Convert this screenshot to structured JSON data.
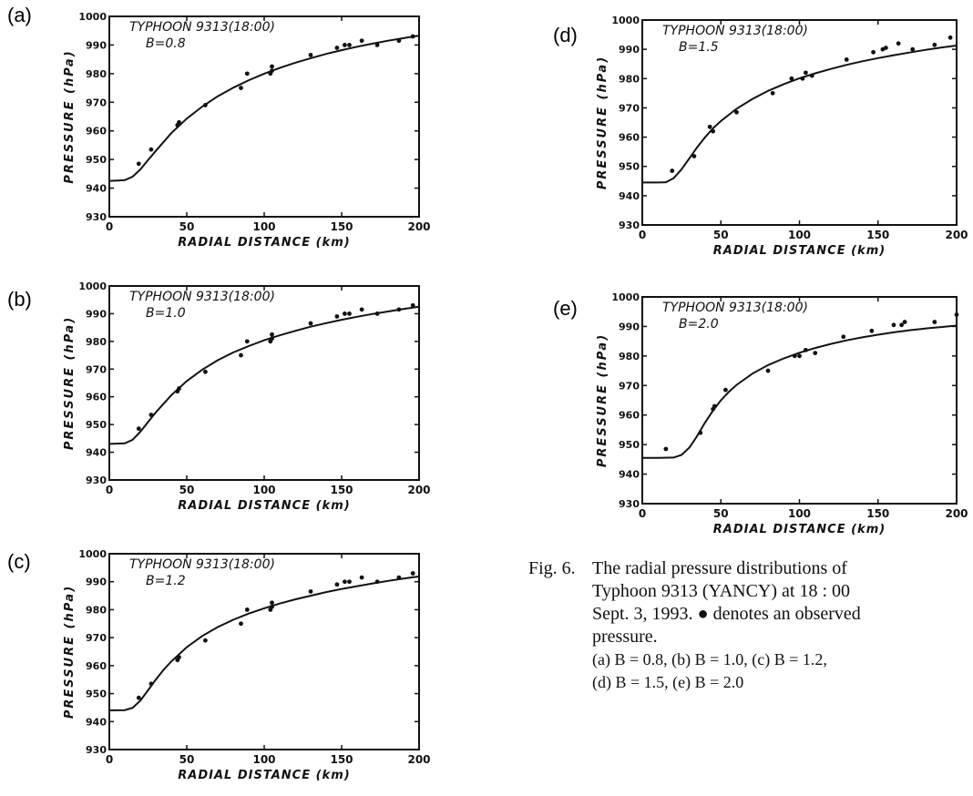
{
  "figure": {
    "panels": [
      {
        "label": "(a)",
        "title": "TYPHOON 9313(18:00)",
        "param": "B=0.8"
      },
      {
        "label": "(b)",
        "title": "TYPHOON 9313(18:00)",
        "param": "B=1.0"
      },
      {
        "label": "(c)",
        "title": "TYPHOON 9313(18:00)",
        "param": "B=1.2"
      },
      {
        "label": "(d)",
        "title": "TYPHOON 9313(18:00)",
        "param": "B=1.5"
      },
      {
        "label": "(e)",
        "title": "TYPHOON 9313(18:00)",
        "param": "B=2.0"
      }
    ],
    "caption": {
      "fig_label": "Fig. 6.",
      "line1": "The radial pressure distributions of",
      "line2": "Typhoon 9313 (YANCY) at 18 : 00",
      "line3": "Sept. 3, 1993. ● denotes an observed",
      "line4": "pressure.",
      "line5": "(a) B = 0.8,  (b) B = 1.0,  (c) B = 1.2,",
      "line6": "(d) B = 1.5,  (e) B = 2.0"
    }
  },
  "chart_data": [
    {
      "type": "scatter",
      "title": "TYPHOON 9313(18:00)",
      "subtitle": "B=0.8",
      "xlabel": "RADIAL DISTANCE (km)",
      "ylabel": "PRESSURE (hPa)",
      "xlim": [
        0,
        200
      ],
      "ylim": [
        930,
        1000
      ],
      "x_ticks": [
        0,
        50,
        100,
        150,
        200
      ],
      "y_ticks": [
        930,
        940,
        950,
        960,
        970,
        980,
        990,
        1000
      ],
      "observed": {
        "x": [
          19,
          27,
          44,
          45,
          62,
          85,
          89,
          104,
          105,
          105,
          130,
          147,
          152,
          155,
          163,
          173,
          187,
          196
        ],
        "y": [
          948.5,
          953.5,
          962,
          963,
          969,
          975,
          980,
          980,
          981,
          982.5,
          986.5,
          989,
          990,
          990,
          991.5,
          990,
          991.5,
          993
        ]
      },
      "model": {
        "x": [
          0,
          10,
          15,
          20,
          25,
          30,
          40,
          50,
          60,
          70,
          80,
          90,
          100,
          110,
          120,
          130,
          140,
          150,
          160,
          170,
          180,
          190,
          200
        ],
        "y": [
          942.5,
          942.8,
          944,
          946.5,
          949.8,
          953,
          959.2,
          964.3,
          968.5,
          972.1,
          975.1,
          977.7,
          980,
          982,
          983.8,
          985.4,
          986.9,
          988.2,
          989.4,
          990.5,
          991.5,
          992.4,
          993.3
        ]
      }
    },
    {
      "type": "scatter",
      "title": "TYPHOON 9313(18:00)",
      "subtitle": "B=1.0",
      "xlabel": "RADIAL DISTANCE (km)",
      "ylabel": "PRESSURE (hPa)",
      "xlim": [
        0,
        200
      ],
      "ylim": [
        930,
        1000
      ],
      "x_ticks": [
        0,
        50,
        100,
        150,
        200
      ],
      "y_ticks": [
        930,
        940,
        950,
        960,
        970,
        980,
        990,
        1000
      ],
      "observed": {
        "x": [
          19,
          27,
          44,
          45,
          62,
          85,
          89,
          104,
          105,
          105,
          130,
          147,
          152,
          155,
          163,
          173,
          187,
          196
        ],
        "y": [
          948.5,
          953.5,
          962,
          963,
          969,
          975,
          980,
          980,
          981,
          982.5,
          986.5,
          989,
          990,
          990,
          991.5,
          990,
          991.5,
          993
        ]
      },
      "model": {
        "x": [
          0,
          10,
          15,
          20,
          25,
          30,
          40,
          50,
          60,
          70,
          80,
          90,
          100,
          110,
          120,
          130,
          140,
          150,
          160,
          170,
          180,
          190,
          200
        ],
        "y": [
          943,
          943.2,
          944.5,
          947.4,
          950.9,
          954.4,
          960.6,
          965.7,
          969.8,
          973.2,
          976,
          978.3,
          980.4,
          982.2,
          983.8,
          985.3,
          986.6,
          987.8,
          988.9,
          989.9,
          990.8,
          991.7,
          992.5
        ]
      }
    },
    {
      "type": "scatter",
      "title": "TYPHOON 9313(18:00)",
      "subtitle": "B=1.2",
      "xlabel": "RADIAL DISTANCE (km)",
      "ylabel": "PRESSURE (hPa)",
      "xlim": [
        0,
        200
      ],
      "ylim": [
        930,
        1000
      ],
      "x_ticks": [
        0,
        50,
        100,
        150,
        200
      ],
      "y_ticks": [
        930,
        940,
        950,
        960,
        970,
        980,
        990,
        1000
      ],
      "observed": {
        "x": [
          19,
          27,
          44,
          45,
          62,
          85,
          89,
          104,
          105,
          105,
          130,
          147,
          152,
          155,
          163,
          173,
          187,
          196
        ],
        "y": [
          948.5,
          953.5,
          962,
          963,
          969,
          975,
          980,
          980,
          981,
          982.5,
          986.5,
          989,
          990,
          990,
          991.5,
          990,
          991.5,
          993
        ]
      },
      "model": {
        "x": [
          0,
          10,
          15,
          20,
          25,
          30,
          35,
          40,
          50,
          60,
          70,
          80,
          90,
          100,
          110,
          120,
          130,
          140,
          150,
          160,
          170,
          180,
          190,
          200
        ],
        "y": [
          944,
          944.1,
          944.9,
          947.5,
          951.2,
          955,
          958.5,
          961.5,
          966.6,
          970.6,
          973.8,
          976.4,
          978.6,
          980.5,
          982.2,
          983.7,
          985,
          986.3,
          987.4,
          988.4,
          989.4,
          990.3,
          991.1,
          991.9
        ]
      }
    },
    {
      "type": "scatter",
      "title": "TYPHOON 9313(18:00)",
      "subtitle": "B=1.5",
      "xlabel": "RADIAL DISTANCE (km)",
      "ylabel": "PRESSURE (hPa)",
      "xlim": [
        0,
        200
      ],
      "ylim": [
        930,
        1000
      ],
      "x_ticks": [
        0,
        50,
        100,
        150,
        200
      ],
      "y_ticks": [
        930,
        940,
        950,
        960,
        970,
        980,
        990,
        1000
      ],
      "observed": {
        "x": [
          19,
          33,
          43,
          45,
          60,
          83,
          95,
          102,
          104,
          108,
          130,
          147,
          153,
          155,
          163,
          172,
          186,
          196
        ],
        "y": [
          948.5,
          953.5,
          963.5,
          962,
          968.5,
          975,
          980,
          980,
          982,
          981,
          986.5,
          989,
          990,
          990.5,
          992,
          990,
          991.5,
          994
        ]
      },
      "model": {
        "x": [
          0,
          10,
          15,
          20,
          25,
          30,
          35,
          40,
          45,
          50,
          60,
          70,
          80,
          90,
          100,
          110,
          120,
          130,
          140,
          150,
          160,
          170,
          180,
          190,
          200
        ],
        "y": [
          944.5,
          944.5,
          944.6,
          946,
          949,
          952.8,
          956.6,
          960,
          963,
          965.5,
          969.7,
          973,
          975.8,
          978.1,
          980.1,
          981.8,
          983.3,
          984.7,
          985.9,
          987,
          988,
          988.9,
          989.8,
          990.6,
          991.3
        ]
      }
    },
    {
      "type": "scatter",
      "title": "TYPHOON 9313(18:00)",
      "subtitle": "B=2.0",
      "xlabel": "RADIAL DISTANCE (km)",
      "ylabel": "PRESSURE (hPa)",
      "xlim": [
        0,
        200
      ],
      "ylim": [
        930,
        1000
      ],
      "x_ticks": [
        0,
        50,
        100,
        150,
        200
      ],
      "y_ticks": [
        930,
        940,
        950,
        960,
        970,
        980,
        990,
        1000
      ],
      "observed": {
        "x": [
          15,
          37,
          45,
          46,
          53,
          80,
          97,
          100,
          104,
          110,
          128,
          146,
          160,
          165,
          167,
          186,
          200
        ],
        "y": [
          948.5,
          954,
          962,
          963,
          968.5,
          975,
          980,
          980,
          982,
          981,
          986.5,
          988.5,
          990.5,
          990.5,
          991.5,
          991.5,
          994
        ]
      },
      "model": {
        "x": [
          0,
          10,
          20,
          25,
          30,
          35,
          40,
          45,
          50,
          55,
          60,
          70,
          80,
          90,
          100,
          110,
          120,
          130,
          140,
          150,
          160,
          170,
          180,
          190,
          200
        ],
        "y": [
          945.5,
          945.5,
          945.6,
          946.5,
          949,
          953,
          957.5,
          961.5,
          965,
          967.8,
          970.2,
          974,
          976.9,
          979.2,
          981.1,
          982.7,
          984.1,
          985.3,
          986.3,
          987.2,
          988,
          988.7,
          989.3,
          989.8,
          990.3
        ]
      }
    }
  ]
}
